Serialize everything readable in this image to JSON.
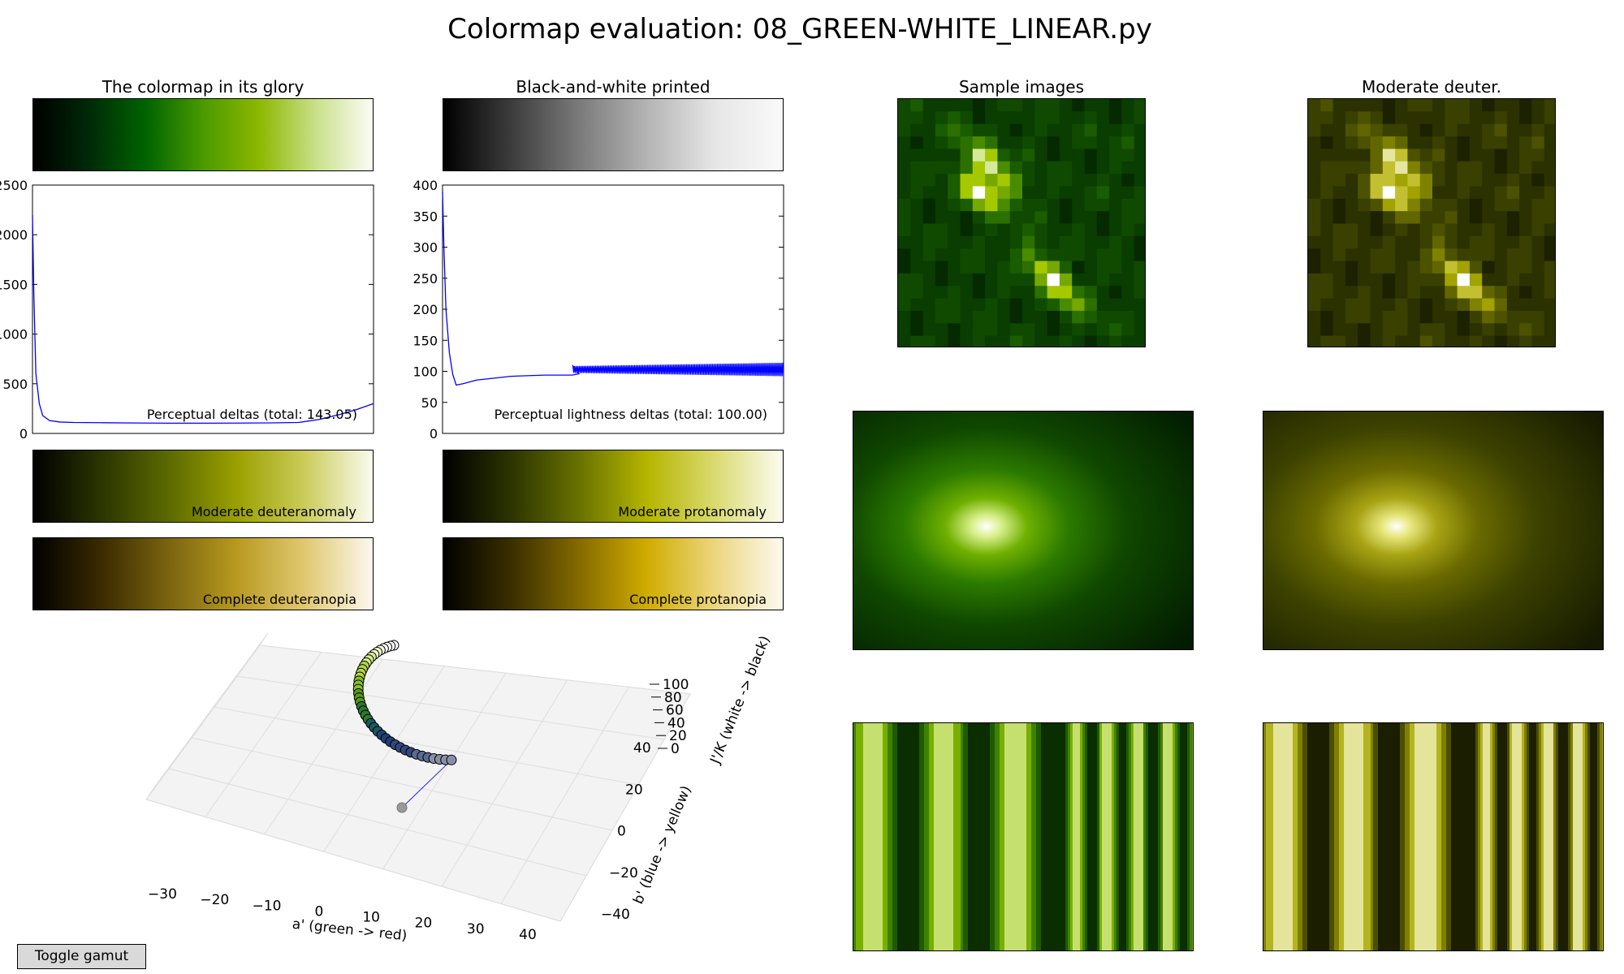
{
  "figure_title": "Colormap evaluation: 08_GREEN-WHITE_LINEAR.py",
  "panel_titles": {
    "glory": "The colormap in its glory",
    "bw": "Black-and-white printed",
    "samples": "Sample images",
    "deuter": "Moderate deuter."
  },
  "colormaps": {
    "glory": [
      "#000000",
      "#002a08",
      "#006400",
      "#4a9a00",
      "#8db800",
      "#c9e08a",
      "#fbfdf6"
    ],
    "grayscale": [
      "#000000",
      "#3c3c3c",
      "#7a7a7a",
      "#b4b4b4",
      "#e6e6e6",
      "#fafafa"
    ],
    "moderate_deuteranomaly": [
      "#000000",
      "#2b3500",
      "#5c6a00",
      "#9ba000",
      "#cbcc5a",
      "#fbfbf0"
    ],
    "moderate_protanomaly": [
      "#000000",
      "#2c3400",
      "#687200",
      "#b5b500",
      "#dada70",
      "#fcfcf2"
    ],
    "complete_deuteranopia": [
      "#000000",
      "#3a2a00",
      "#7a6410",
      "#b89a20",
      "#e0c870",
      "#fdf8ee"
    ],
    "complete_protanopia": [
      "#000000",
      "#3a2e00",
      "#846a00",
      "#d0ac00",
      "#ecd67e",
      "#fdf9ef"
    ]
  },
  "bar_labels": {
    "moderate_deuteranomaly": "Moderate deuteranomaly",
    "moderate_protanomaly": "Moderate protanomaly",
    "complete_deuteranopia": "Complete deuteranopia",
    "complete_protanopia": "Complete protanopia"
  },
  "toggle_label": "Toggle gamut",
  "chart_data": [
    {
      "type": "line",
      "id": "perceptual",
      "annotation": "Perceptual deltas (total: 143.05)",
      "ylim": [
        0,
        2500
      ],
      "yticks": [
        "0",
        "500",
        "1000",
        "1500",
        "2000",
        "2500"
      ],
      "x": [
        0,
        0.004,
        0.01,
        0.02,
        0.03,
        0.05,
        0.08,
        0.12,
        0.2,
        0.3,
        0.4,
        0.5,
        0.6,
        0.7,
        0.78,
        0.84,
        0.9,
        0.95,
        1.0
      ],
      "y": [
        2200,
        1400,
        600,
        300,
        180,
        130,
        115,
        110,
        108,
        105,
        103,
        103,
        104,
        106,
        110,
        140,
        190,
        240,
        300
      ]
    },
    {
      "type": "line",
      "id": "lightness",
      "annotation": "Perceptual lightness deltas (total: 100.00)",
      "ylim": [
        0,
        400
      ],
      "yticks": [
        "0",
        "50",
        "100",
        "150",
        "200",
        "250",
        "300",
        "350",
        "400"
      ],
      "x": [
        0,
        0.004,
        0.01,
        0.02,
        0.03,
        0.04,
        0.06,
        0.1,
        0.2,
        0.3,
        0.38,
        0.4
      ],
      "y": [
        390,
        300,
        200,
        130,
        95,
        78,
        80,
        86,
        92,
        94,
        94,
        96
      ],
      "oscillation": {
        "x_start": 0.38,
        "x_end": 1.0,
        "mean": 103,
        "amplitude": 9
      }
    },
    {
      "type": "scatter",
      "id": "gamut3d",
      "xlabel": "a' (green -> red)",
      "ylabel": "b' (blue -> yellow)",
      "zlabel": "J'/K (white -> black)",
      "xticks": [
        "−30",
        "−20",
        "−10",
        "0",
        "10",
        "20",
        "30",
        "40"
      ],
      "yticks": [
        "−40",
        "−20",
        "0",
        "20",
        "40"
      ],
      "zticks": [
        "0",
        "20",
        "40",
        "60",
        "80",
        "100"
      ]
    }
  ]
}
